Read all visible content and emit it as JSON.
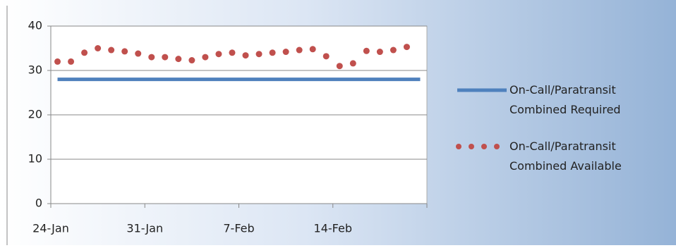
{
  "chart_data": {
    "type": "line",
    "categories": [
      "24-Jan",
      null,
      null,
      null,
      null,
      null,
      null,
      "31-Jan",
      null,
      null,
      null,
      null,
      null,
      null,
      "7-Feb",
      null,
      null,
      null,
      null,
      null,
      null,
      "14-Feb",
      null,
      null,
      null,
      null,
      null,
      null
    ],
    "series": [
      {
        "name": "On-Call/Paratransit Combined Required",
        "color": "#4f81bd",
        "style": "line",
        "values": [
          28,
          28,
          28,
          28,
          28,
          28,
          28,
          28,
          28,
          28,
          28,
          28,
          28,
          28,
          28,
          28,
          28,
          28,
          28,
          28,
          28,
          28,
          28,
          28,
          28,
          28,
          28,
          28
        ]
      },
      {
        "name": "On-Call/Paratransit Combined Available",
        "color": "#c0504d",
        "style": "dots",
        "values": [
          32,
          32,
          34,
          35,
          34.6,
          34.3,
          33.8,
          33,
          33,
          32.6,
          32.3,
          33,
          33.7,
          34,
          33.4,
          33.7,
          34,
          34.2,
          34.6,
          34.8,
          33.2,
          31,
          31.6,
          34.4,
          34.2,
          34.6,
          35.3,
          null
        ]
      }
    ],
    "ylim": [
      0,
      40
    ],
    "yticks": [
      0,
      10,
      20,
      30,
      40
    ],
    "grid": true
  }
}
